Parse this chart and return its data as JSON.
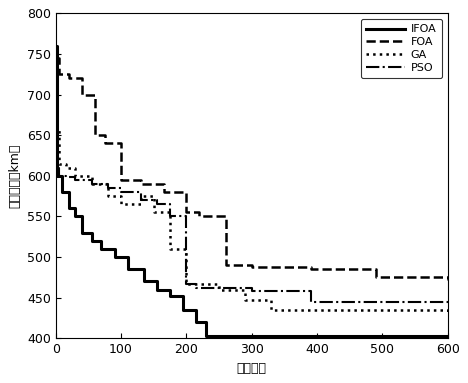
{
  "title": "",
  "xlabel": "进化代数",
  "ylabel": "行驶距离（km）",
  "xlim": [
    0,
    600
  ],
  "ylim": [
    400,
    800
  ],
  "yticks": [
    400,
    450,
    500,
    550,
    600,
    650,
    700,
    750,
    800
  ],
  "xticks": [
    0,
    100,
    200,
    300,
    400,
    500,
    600
  ],
  "legend": [
    "IFOA",
    "FOA",
    "GA",
    "PSO"
  ],
  "IFOA": {
    "x": [
      0,
      2,
      10,
      20,
      30,
      40,
      55,
      70,
      90,
      110,
      135,
      155,
      175,
      195,
      215,
      230,
      600
    ],
    "y": [
      760,
      600,
      580,
      560,
      550,
      530,
      520,
      510,
      500,
      485,
      470,
      460,
      452,
      435,
      420,
      403,
      403
    ],
    "style": "-",
    "color": "#000000",
    "lw": 2.2
  },
  "FOA": {
    "x": [
      0,
      5,
      20,
      40,
      60,
      75,
      100,
      130,
      165,
      200,
      220,
      260,
      300,
      390,
      490,
      600
    ],
    "y": [
      745,
      725,
      720,
      700,
      650,
      640,
      595,
      590,
      580,
      555,
      550,
      490,
      488,
      485,
      475,
      472
    ],
    "style": "--",
    "color": "#000000",
    "lw": 1.8
  },
  "GA": {
    "x": [
      0,
      5,
      15,
      30,
      55,
      80,
      100,
      130,
      150,
      175,
      200,
      250,
      290,
      330,
      600
    ],
    "y": [
      660,
      615,
      610,
      600,
      590,
      575,
      565,
      575,
      555,
      510,
      467,
      460,
      447,
      435,
      432
    ],
    "style": ":",
    "color": "#000000",
    "lw": 1.8
  },
  "PSO": {
    "x": [
      0,
      5,
      15,
      30,
      55,
      80,
      100,
      130,
      155,
      175,
      200,
      215,
      300,
      390,
      600
    ],
    "y": [
      610,
      600,
      598,
      595,
      590,
      585,
      580,
      570,
      565,
      550,
      467,
      462,
      458,
      445,
      443
    ],
    "style": "-.",
    "color": "#000000",
    "lw": 1.5
  }
}
